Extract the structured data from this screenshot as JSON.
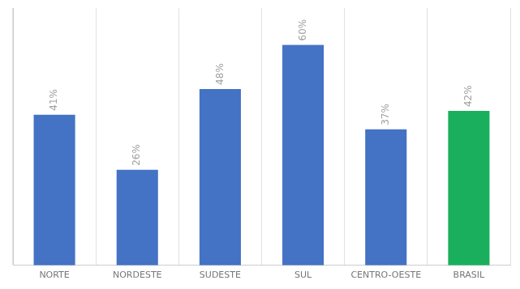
{
  "chart_data": {
    "type": "bar",
    "categories": [
      "NORTE",
      "NORDESTE",
      "SUDESTE",
      "SUL",
      "CENTRO-OESTE",
      "BRASIL"
    ],
    "values": [
      41,
      26,
      48,
      60,
      37,
      42
    ],
    "value_labels": [
      "41%",
      "26%",
      "48%",
      "60%",
      "37%",
      "42%"
    ],
    "colors": [
      "#4472C4",
      "#4472C4",
      "#4472C4",
      "#4472C4",
      "#4472C4",
      "#1AAF5D"
    ],
    "ylim": [
      0,
      70
    ],
    "grid": true,
    "data_labels": true,
    "tick_labels": "x"
  }
}
